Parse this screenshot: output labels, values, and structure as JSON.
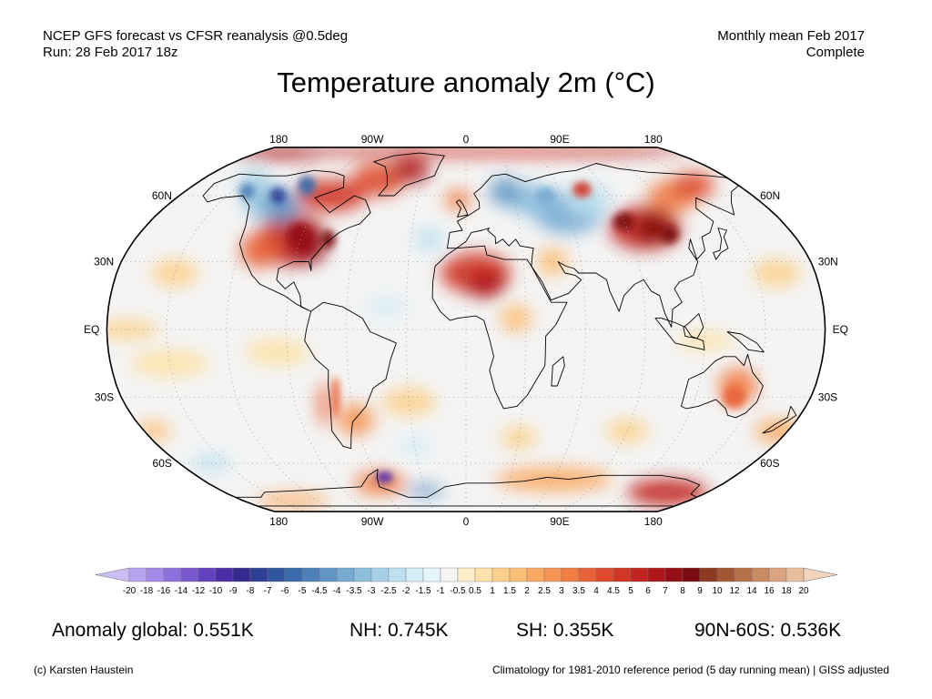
{
  "header": {
    "left_line1": "NCEP GFS forecast vs CFSR reanalysis @0.5deg",
    "left_line2": "Run: 28 Feb 2017 18z",
    "right_line1": "Monthly mean Feb 2017",
    "right_line2": "Complete"
  },
  "title": "Temperature anomaly 2m (°C)",
  "map": {
    "projection": "Robinson",
    "lon_labels": [
      "180",
      "90W",
      "0",
      "90E",
      "180"
    ],
    "lat_labels": [
      "60N",
      "30N",
      "EQ",
      "30S",
      "60S"
    ],
    "colors": {
      "ocean_neutral": "#f4f4f4",
      "land_outline": "#000000",
      "grid": "#9a9a9a"
    }
  },
  "colorbar": {
    "labels": [
      "-20",
      "-18",
      "-16",
      "-14",
      "-12",
      "-10",
      "-9",
      "-8",
      "-7",
      "-6",
      "-5",
      "-4.5",
      "-4",
      "-3.5",
      "-3",
      "-2.5",
      "-2",
      "-1.5",
      "-1",
      "-0.5",
      "0.5",
      "1",
      "1.5",
      "2",
      "2.5",
      "3",
      "3.5",
      "4",
      "4.5",
      "5",
      "6",
      "7",
      "8",
      "9",
      "10",
      "12",
      "14",
      "16",
      "18",
      "20"
    ],
    "colors": [
      "#cdbdf5",
      "#b8a4ee",
      "#a48ae6",
      "#8f71dc",
      "#7a58cf",
      "#6340be",
      "#4c2ca8",
      "#372a8f",
      "#2e3f95",
      "#2e559e",
      "#3a6aab",
      "#4d80b8",
      "#6196c5",
      "#76aad1",
      "#8dbedc",
      "#a5d0e6",
      "#bde0ef",
      "#d3ecf6",
      "#e6f5fa",
      "#f4f4f4",
      "#fdeec8",
      "#fde2a9",
      "#fcd08c",
      "#fbbe76",
      "#f9a962",
      "#f69453",
      "#f17c44",
      "#e96238",
      "#de4a2d",
      "#d13526",
      "#c2251f",
      "#ad171a",
      "#941014",
      "#7a0b0f",
      "#8e3a22",
      "#a35634",
      "#b77149",
      "#c98b62",
      "#d9a47f",
      "#e7be9e",
      "#f2d4bd"
    ]
  },
  "stats": {
    "global": "Anomaly global: 0.551K",
    "nh": "NH: 0.745K",
    "sh": "SH: 0.355K",
    "arctic": "90N-60S: 0.536K"
  },
  "footer": {
    "credit": "(c) Karsten Haustein",
    "note": "Climatology for 1981-2010 reference period (5 day running mean) | GISS adjusted"
  }
}
